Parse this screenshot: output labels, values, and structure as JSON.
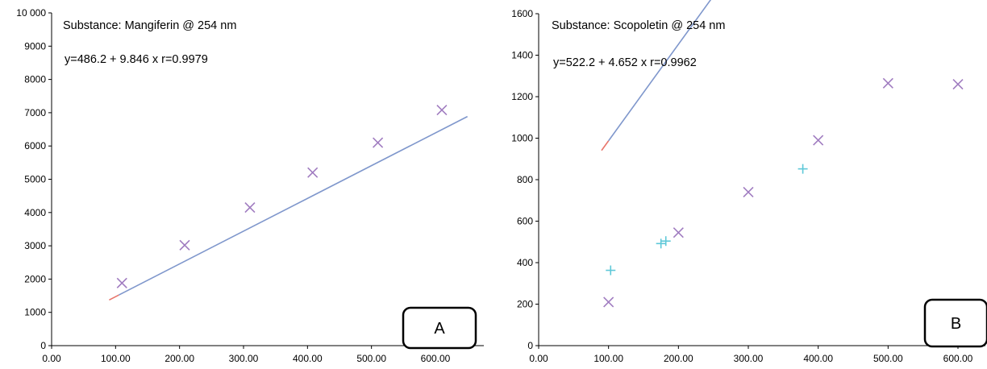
{
  "chart_data": [
    {
      "type": "scatter",
      "panel_label": "A",
      "title": "Substance: Mangiferin @ 254 nm",
      "equation": "y=486.2 + 9.846 x r=0.9979",
      "xlim": [
        0,
        650
      ],
      "ylim": [
        0,
        10000
      ],
      "x_ticks": [
        0,
        100,
        200,
        300,
        400,
        500,
        600
      ],
      "x_tick_labels": [
        "0.00",
        "100.00",
        "200.00",
        "300.00",
        "400.00",
        "500.00",
        "600.00"
      ],
      "y_ticks": [
        0,
        1000,
        2000,
        3000,
        4000,
        5000,
        6000,
        7000,
        8000,
        9000,
        10000
      ],
      "y_tick_labels": [
        "0",
        "1000",
        "2000",
        "3000",
        "4000",
        "5000",
        "6000",
        "7000",
        "8000",
        "9000",
        "10 000"
      ],
      "grid": false,
      "series": [
        {
          "kind": "points",
          "marker": "x",
          "color": "#a07cc0",
          "points": [
            [
              110,
              1880
            ],
            [
              208,
              3020
            ],
            [
              310,
              4150
            ],
            [
              408,
              5200
            ],
            [
              510,
              6100
            ],
            [
              610,
              7080
            ]
          ]
        },
        {
          "kind": "points",
          "marker": "plus",
          "color": "#5ec8d8",
          "points": []
        }
      ],
      "fit": {
        "intercept": 486.2,
        "slope": 9.846,
        "x_start": 105,
        "x_end": 650,
        "color": "#7f97cc"
      },
      "extrapolation": {
        "x_start": 90,
        "x_end": 105,
        "color": "#e8756b"
      }
    },
    {
      "type": "scatter",
      "panel_label": "B",
      "title": "Substance: Scopoletin @ 254 nm",
      "equation": "y=522.2 + 4.652 x r=0.9962",
      "xlim": [
        0,
        650
      ],
      "ylim": [
        0,
        1600
      ],
      "x_ticks": [
        0,
        100,
        200,
        300,
        400,
        500,
        600
      ],
      "x_tick_labels": [
        "0.00",
        "100.00",
        "200.00",
        "300.00",
        "400.00",
        "500.00",
        "600.00"
      ],
      "y_ticks": [
        0,
        200,
        400,
        600,
        800,
        1000,
        1200,
        1400,
        1600
      ],
      "y_tick_labels": [
        "0",
        "200",
        "400",
        "600",
        "800",
        "1000",
        "1200",
        "1400",
        "1600"
      ],
      "grid": false,
      "series": [
        {
          "kind": "points",
          "marker": "x",
          "color": "#a07cc0",
          "points": [
            [
              100,
              210
            ],
            [
              200,
              545
            ],
            [
              300,
              740
            ],
            [
              400,
              990
            ],
            [
              500,
              1265
            ],
            [
              600,
              1260
            ]
          ]
        },
        {
          "kind": "points",
          "marker": "plus",
          "color": "#5ec8d8",
          "points": [
            [
              103,
              363
            ],
            [
              175,
              492
            ],
            [
              182,
              504
            ],
            [
              378,
              852
            ]
          ]
        }
      ],
      "fit": {
        "intercept": 522.2,
        "slope": 4.652,
        "x_start": 100,
        "x_end": 650,
        "color": "#7f97cc"
      },
      "extrapolation": {
        "x_start": 90,
        "x_end": 100,
        "color": "#e8756b"
      }
    }
  ]
}
